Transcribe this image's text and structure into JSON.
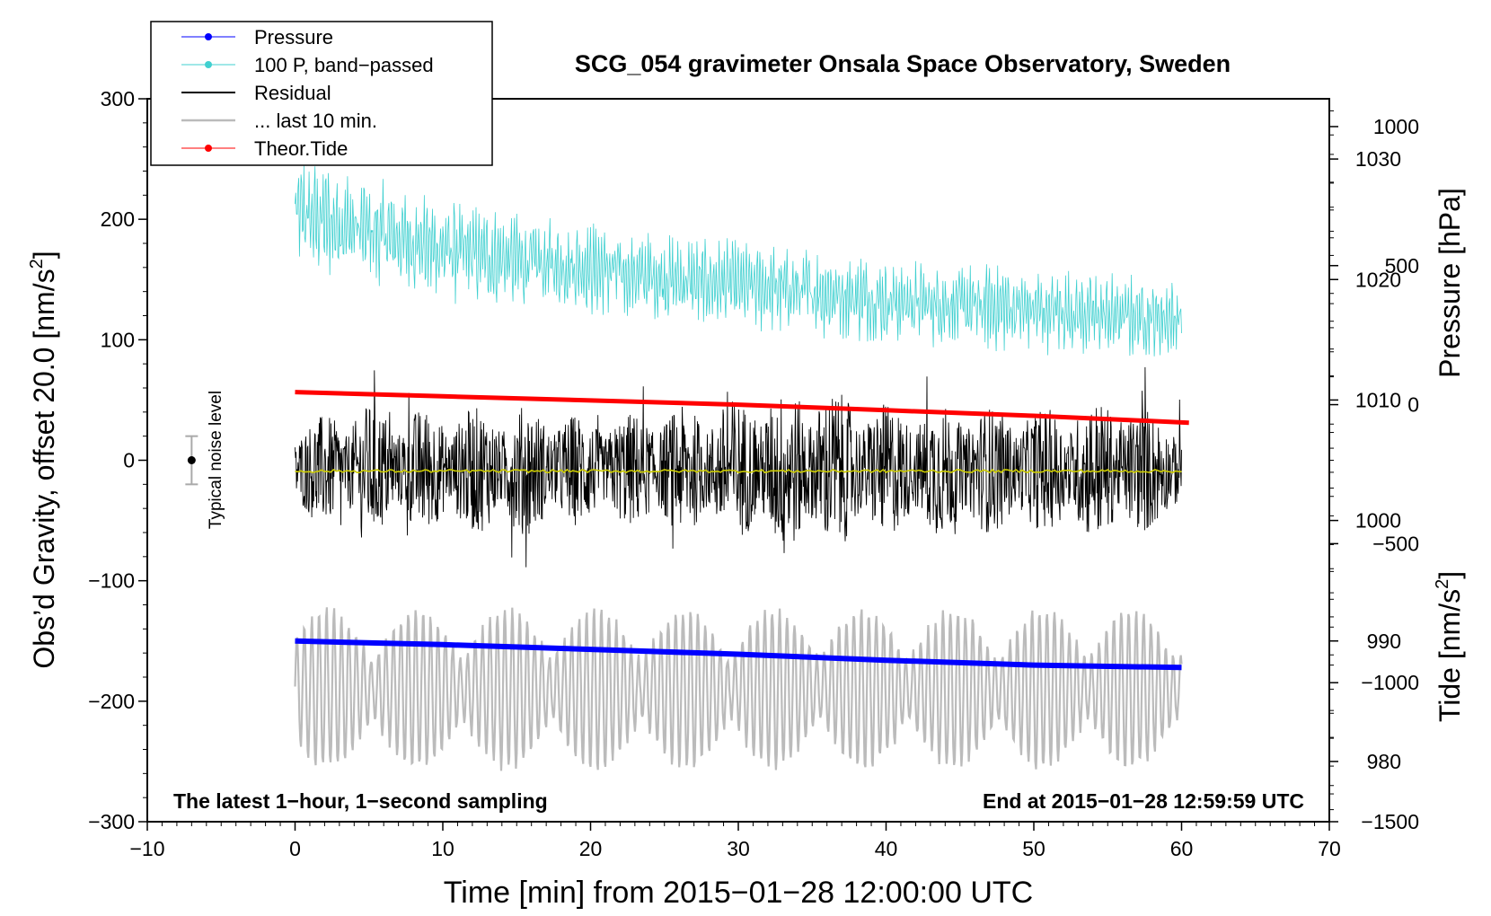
{
  "chart_data": {
    "type": "line",
    "title": "SCG_054 gravimeter Onsala Space Observatory, Sweden",
    "xlabel": "Time [min] from 2015−01−28 12:00:00 UTC",
    "ylabel_left_main": "Obs’d Gravity, offset 20.0 [nm/s",
    "ylabel_left_sup": "2",
    "ylabel_left_end": "]",
    "ylabel_right_top": "Pressure [hPa]",
    "ylabel_right_bottom_main": "Tide [nm/s",
    "ylabel_right_bottom_sup": "2",
    "ylabel_right_bottom_end": "]",
    "xlim": [
      -10,
      70
    ],
    "ylim": [
      -300,
      300
    ],
    "pressure_axis_range": [
      975,
      1035
    ],
    "tide_axis_range": [
      -1500,
      1100
    ],
    "x_ticks": [
      "−10",
      "0",
      "10",
      "20",
      "30",
      "40",
      "50",
      "60",
      "70"
    ],
    "x_tick_values": [
      -10,
      0,
      10,
      20,
      30,
      40,
      50,
      60,
      70
    ],
    "y_ticks": [
      "300",
      "200",
      "100",
      "0",
      "−100",
      "−200",
      "−300"
    ],
    "y_tick_values": [
      300,
      200,
      100,
      0,
      -100,
      -200,
      -300
    ],
    "pressure_ticks": [
      "1030",
      "1020",
      "1010",
      "1000",
      "990",
      "980"
    ],
    "pressure_tick_values": [
      1030,
      1020,
      1010,
      1000,
      990,
      980
    ],
    "tide_ticks": [
      "1000",
      "500",
      "0",
      "−500",
      "−1000",
      "−1500"
    ],
    "tide_tick_values": [
      1000,
      500,
      0,
      -500,
      -1000,
      -1500
    ],
    "legend": [
      {
        "label": "Pressure",
        "color": "#0000ff",
        "marker": true,
        "width": 1
      },
      {
        "label": "100 P, band−passed",
        "color": "#40d0d0",
        "marker": true,
        "width": 1
      },
      {
        "label": "Residual",
        "color": "#000000",
        "marker": false,
        "width": 2
      },
      {
        "label": "... last 10 min.",
        "color": "#bbbbbb",
        "marker": false,
        "width": 2.5
      },
      {
        "label": "Theor.Tide",
        "color": "#ff0000",
        "marker": true,
        "width": 1
      }
    ],
    "annotation_left": "The latest 1−hour, 1−second sampling",
    "annotation_right": "End at 2015−01−28 12:59:59 UTC",
    "noise_label": "Typical noise level",
    "noise_level": {
      "x": -7,
      "y": 0,
      "err": 20
    },
    "series": [
      {
        "name": "Pressure",
        "axis": "pressure",
        "color": "#0000ff",
        "x": [
          0,
          10,
          20,
          30,
          40,
          50,
          60
        ],
        "values": [
          990.0,
          989.7,
          989.3,
          988.9,
          988.4,
          988.0,
          987.8
        ]
      },
      {
        "name": "100 P, band−passed",
        "axis": "gravity",
        "color": "#40d0d0",
        "x": [
          0,
          5,
          10,
          15,
          20,
          25,
          30,
          35,
          40,
          45,
          50,
          55,
          60
        ],
        "center": [
          205,
          190,
          175,
          165,
          160,
          150,
          145,
          140,
          132,
          128,
          125,
          120,
          118
        ],
        "amplitude": [
          45,
          42,
          40,
          38,
          36,
          35,
          34,
          34,
          33,
          32,
          33,
          32,
          30
        ]
      },
      {
        "name": "Residual",
        "axis": "gravity",
        "color": "#000000",
        "x": [
          0,
          5,
          10,
          15,
          20,
          25,
          30,
          35,
          40,
          45,
          50,
          55,
          60
        ],
        "center": [
          -8,
          -8,
          -8,
          -8,
          -8,
          -8,
          -8,
          -8,
          -8,
          -8,
          -8,
          -8,
          -8
        ],
        "amplitude": [
          40,
          55,
          50,
          55,
          45,
          50,
          60,
          70,
          55,
          55,
          50,
          60,
          45
        ]
      },
      {
        "name": "Mean level",
        "axis": "gravity",
        "color": "#cccc00",
        "x": [
          0,
          60
        ],
        "values": [
          -9,
          -9
        ]
      },
      {
        "name": "... last 10 min.",
        "axis": "gravity",
        "color": "#bbbbbb",
        "x_start": 0,
        "x_end": 60,
        "center": -190,
        "amplitude": 65
      },
      {
        "name": "Theor.Tide",
        "axis": "tide",
        "color": "#ff0000",
        "x": [
          0,
          10,
          20,
          30,
          40,
          50,
          60.5
        ],
        "values": [
          45,
          30,
          15,
          0,
          -20,
          -40,
          -65
        ]
      }
    ]
  }
}
